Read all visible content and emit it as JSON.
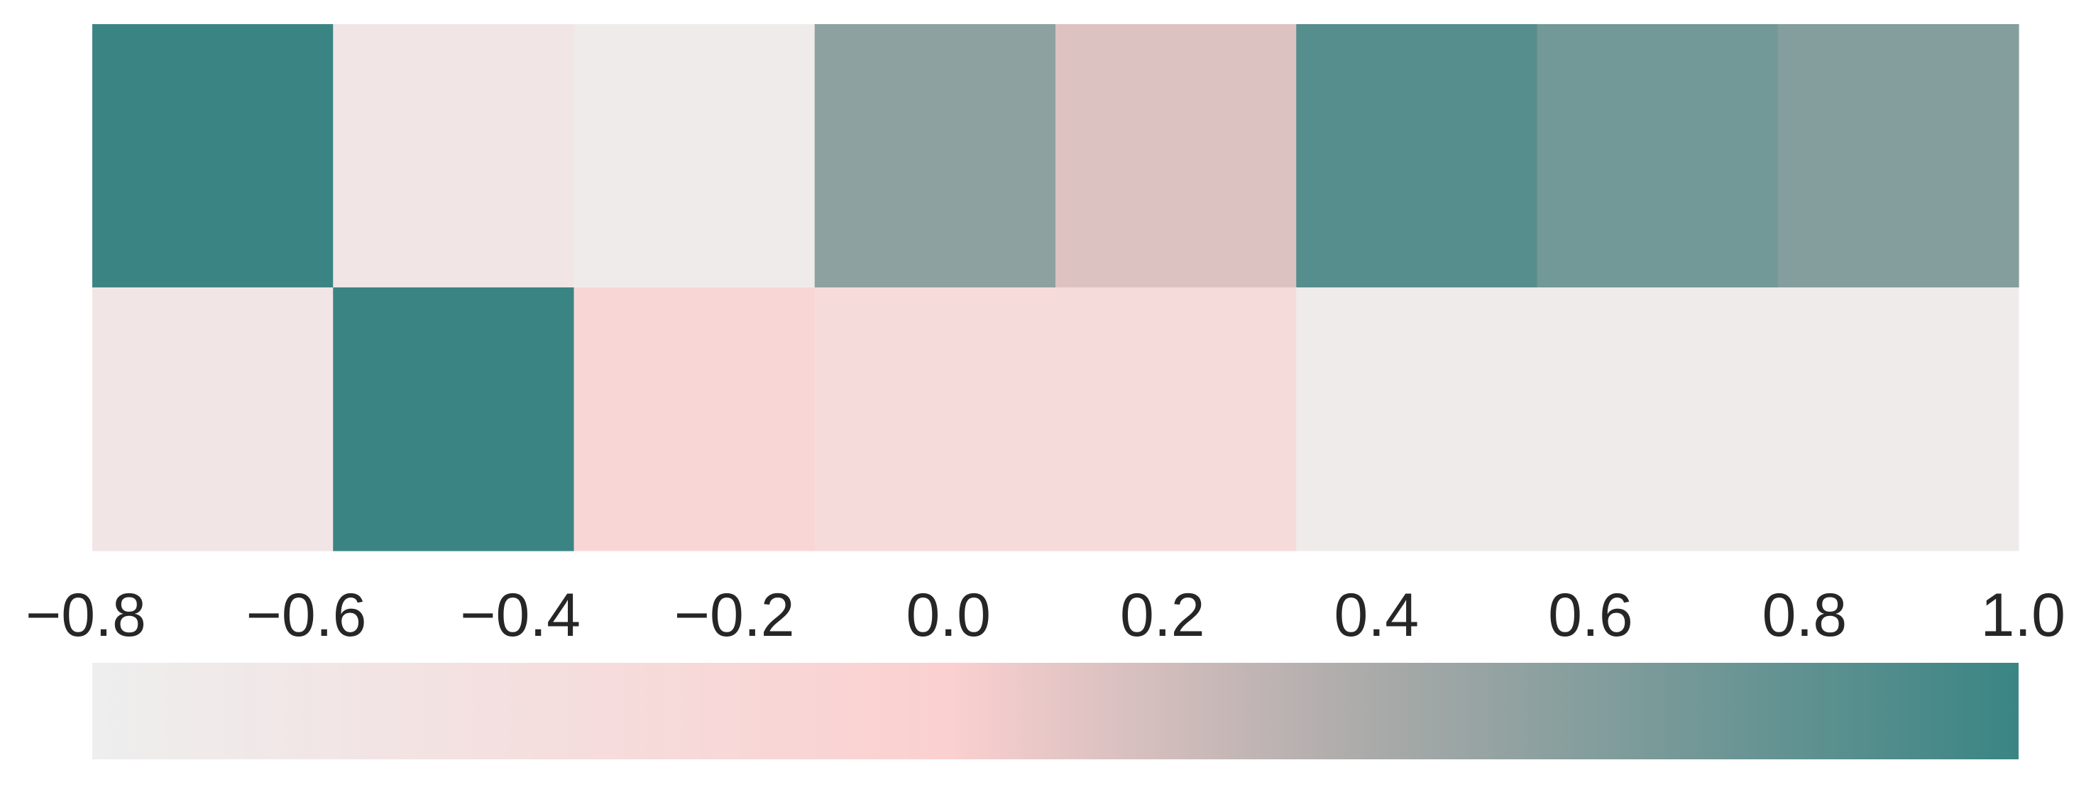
{
  "chart_data": {
    "type": "heatmap",
    "rows": 2,
    "cols": 8,
    "values": [
      [
        1.0,
        -0.55,
        -0.72,
        0.55,
        0.15,
        0.85,
        0.7,
        0.6
      ],
      [
        -0.55,
        1.0,
        -0.15,
        -0.3,
        -0.3,
        -0.72,
        -0.72,
        -0.72
      ]
    ],
    "colorbar": {
      "orientation": "horizontal",
      "location": "bottom",
      "vmin": -0.8,
      "vmax": 1.0,
      "ticks": [
        -0.8,
        -0.6,
        -0.4,
        -0.2,
        0.0,
        0.2,
        0.4,
        0.6,
        0.8,
        1.0
      ],
      "tick_labels": [
        "−0.8",
        "−0.6",
        "−0.4",
        "−0.2",
        "0.0",
        "0.2",
        "0.4",
        "0.6",
        "0.8",
        "1.0"
      ]
    },
    "colormap": {
      "stops": [
        {
          "value": -0.8,
          "color": "#eeeeee"
        },
        {
          "value": 0.0,
          "color": "#fbd0d0"
        },
        {
          "value": 0.4,
          "color": "#a9aaa9"
        },
        {
          "value": 1.0,
          "color": "#3a8584"
        }
      ]
    },
    "title": "",
    "xlabel": "",
    "ylabel": "",
    "grid": false
  }
}
